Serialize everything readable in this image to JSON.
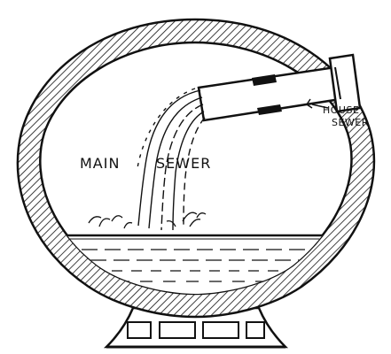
{
  "labels": {
    "main_sewer_word1": "MAIN",
    "main_sewer_word2": "SEWER",
    "house_sewer_line1": "HOUSE",
    "house_sewer_line2": "SEWER"
  },
  "colors": {
    "ink": "#111111",
    "paper": "#ffffff"
  }
}
